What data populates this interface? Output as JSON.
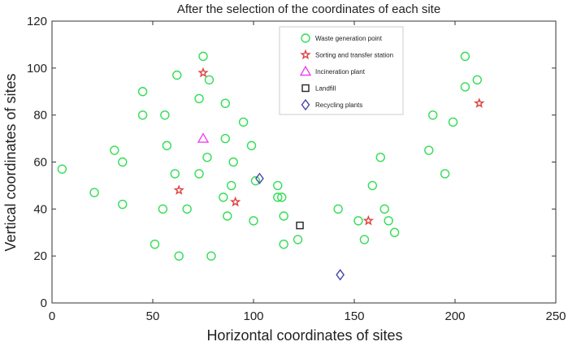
{
  "chart_data": {
    "type": "scatter",
    "title": "After the selection of the coordinates of each site",
    "xlabel": "Horizontal coordinates of sites",
    "ylabel": "Vertical coordinates of sites",
    "xlim": [
      0,
      250
    ],
    "ylim": [
      0,
      120
    ],
    "xticks": [
      "0",
      "50",
      "100",
      "150",
      "200",
      "250"
    ],
    "yticks": [
      "0",
      "20",
      "40",
      "60",
      "80",
      "100",
      "120"
    ],
    "grid": false,
    "legend_position": "top-center",
    "series": [
      {
        "name": "Waste generation point",
        "marker": "circle",
        "color": "#33dd55",
        "points": [
          [
            5,
            57
          ],
          [
            21,
            47
          ],
          [
            31,
            65
          ],
          [
            35,
            60
          ],
          [
            35,
            42
          ],
          [
            45,
            90
          ],
          [
            45,
            80
          ],
          [
            51,
            25
          ],
          [
            55,
            40
          ],
          [
            56,
            80
          ],
          [
            57,
            67
          ],
          [
            61,
            55
          ],
          [
            62,
            97
          ],
          [
            63,
            20
          ],
          [
            67,
            40
          ],
          [
            73,
            87
          ],
          [
            73,
            55
          ],
          [
            75,
            105
          ],
          [
            77,
            62
          ],
          [
            78,
            95
          ],
          [
            79,
            20
          ],
          [
            85,
            45
          ],
          [
            86,
            85
          ],
          [
            86,
            70
          ],
          [
            87,
            37
          ],
          [
            89,
            50
          ],
          [
            90,
            60
          ],
          [
            95,
            77
          ],
          [
            99,
            67
          ],
          [
            100,
            35
          ],
          [
            101,
            52
          ],
          [
            112,
            50
          ],
          [
            112,
            45
          ],
          [
            114,
            45
          ],
          [
            115,
            37
          ],
          [
            115,
            25
          ],
          [
            122,
            27
          ],
          [
            142,
            40
          ],
          [
            152,
            35
          ],
          [
            155,
            27
          ],
          [
            159,
            50
          ],
          [
            163,
            62
          ],
          [
            165,
            40
          ],
          [
            167,
            35
          ],
          [
            170,
            30
          ],
          [
            187,
            65
          ],
          [
            189,
            80
          ],
          [
            195,
            55
          ],
          [
            199,
            77
          ],
          [
            205,
            92
          ],
          [
            205,
            105
          ],
          [
            211,
            95
          ]
        ]
      },
      {
        "name": "Sorting and transfer station",
        "marker": "star",
        "color": "#e04040",
        "points": [
          [
            75,
            98
          ],
          [
            63,
            48
          ],
          [
            91,
            43
          ],
          [
            157,
            35
          ],
          [
            212,
            85
          ]
        ]
      },
      {
        "name": "Incineration plant",
        "marker": "triangle",
        "color": "#ee44ee",
        "points": [
          [
            75,
            70
          ]
        ]
      },
      {
        "name": "Landfill",
        "marker": "square",
        "color": "#222222",
        "points": [
          [
            123,
            33
          ]
        ]
      },
      {
        "name": "Recycling plants",
        "marker": "diamond",
        "color": "#4444aa",
        "points": [
          [
            103,
            53
          ],
          [
            143,
            12
          ]
        ]
      }
    ]
  }
}
